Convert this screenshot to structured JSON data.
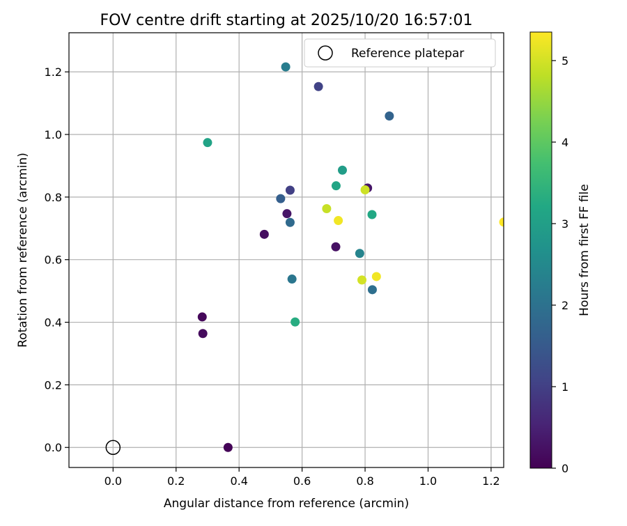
{
  "chart_data": {
    "type": "scatter",
    "title": "FOV centre drift starting at 2025/10/20 16:57:01",
    "xlabel": "Angular distance from reference (arcmin)",
    "ylabel": "Rotation from reference (arcmin)",
    "xlim": [
      -0.14,
      1.24
    ],
    "ylim": [
      -0.064,
      1.325
    ],
    "grid": true,
    "x_ticks": [
      "0.0",
      "0.2",
      "0.4",
      "0.6",
      "0.8",
      "1.0",
      "1.2"
    ],
    "y_ticks": [
      "0.0",
      "0.2",
      "0.4",
      "0.6",
      "0.8",
      "1.0",
      "1.2"
    ],
    "reference_point": {
      "x": 0.0,
      "y": 0.0
    },
    "legend": {
      "label": "Reference platepar",
      "location": "top-right"
    },
    "colorbar": {
      "label": "Hours from first FF file",
      "colormap": "viridis",
      "range": [
        0,
        5.35
      ],
      "ticks": [
        "0",
        "1",
        "2",
        "3",
        "4",
        "5"
      ]
    },
    "points": [
      {
        "x": 0.365,
        "y": 0.0,
        "hours": 0.05
      },
      {
        "x": 0.283,
        "y": 0.417,
        "hours": 0.1
      },
      {
        "x": 0.285,
        "y": 0.364,
        "hours": 0.15
      },
      {
        "x": 0.48,
        "y": 0.681,
        "hours": 0.2
      },
      {
        "x": 0.552,
        "y": 0.747,
        "hours": 0.3
      },
      {
        "x": 0.707,
        "y": 0.641,
        "hours": 0.25
      },
      {
        "x": 0.808,
        "y": 0.829,
        "hours": 0.3
      },
      {
        "x": 0.562,
        "y": 0.822,
        "hours": 1.0
      },
      {
        "x": 0.652,
        "y": 1.153,
        "hours": 1.05
      },
      {
        "x": 0.532,
        "y": 0.795,
        "hours": 1.6
      },
      {
        "x": 0.877,
        "y": 1.059,
        "hours": 1.7
      },
      {
        "x": 0.562,
        "y": 0.719,
        "hours": 1.85
      },
      {
        "x": 0.823,
        "y": 0.504,
        "hours": 1.95
      },
      {
        "x": 0.568,
        "y": 0.538,
        "hours": 2.1
      },
      {
        "x": 0.548,
        "y": 1.216,
        "hours": 2.25
      },
      {
        "x": 0.783,
        "y": 0.62,
        "hours": 2.4
      },
      {
        "x": 0.728,
        "y": 0.886,
        "hours": 2.95
      },
      {
        "x": 0.3,
        "y": 0.974,
        "hours": 3.1
      },
      {
        "x": 0.708,
        "y": 0.836,
        "hours": 3.15
      },
      {
        "x": 0.822,
        "y": 0.744,
        "hours": 3.2
      },
      {
        "x": 0.578,
        "y": 0.401,
        "hours": 3.3
      },
      {
        "x": 0.678,
        "y": 0.763,
        "hours": 4.9
      },
      {
        "x": 0.8,
        "y": 0.823,
        "hours": 4.95
      },
      {
        "x": 0.79,
        "y": 0.535,
        "hours": 5.0
      },
      {
        "x": 0.715,
        "y": 0.725,
        "hours": 5.25
      },
      {
        "x": 0.836,
        "y": 0.546,
        "hours": 5.25
      },
      {
        "x": 1.24,
        "y": 0.72,
        "hours": 5.35
      }
    ]
  }
}
